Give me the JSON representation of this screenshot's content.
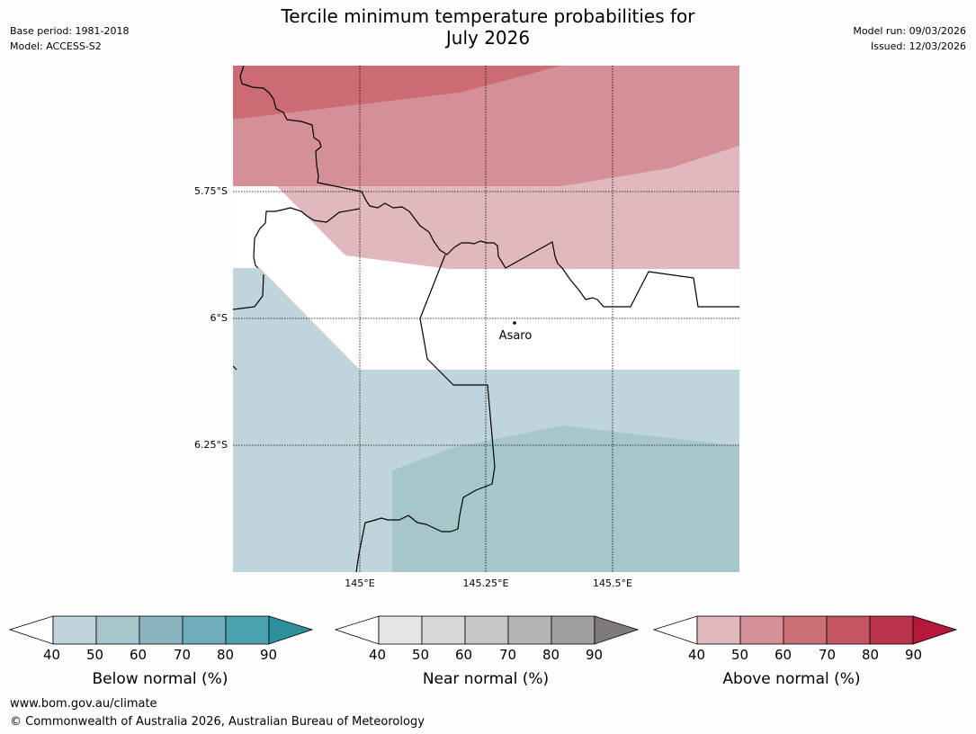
{
  "header": {
    "title_line1": "Tercile minimum temperature probabilities for",
    "title_line2": "July 2026",
    "base_period": "Base period: 1981-2018",
    "model": "Model: ACCESS-S2",
    "model_run": "Model run: 09/03/2026",
    "issued": "Issued: 12/03/2026"
  },
  "map": {
    "place_label": "Asaro",
    "lat_labels": [
      "5.75°S",
      "6°S",
      "6.25°S"
    ],
    "lon_labels": [
      "145°E",
      "145.25°E",
      "145.5°E"
    ],
    "colors": {
      "above_50": "#e0b8bd",
      "above_60": "#d58f96",
      "above_70": "#cb6c74",
      "below_50": "#bfd5db",
      "below_60": "#a7c6cb"
    }
  },
  "colorbars": [
    {
      "label": "Below normal (%)",
      "ticks": [
        "40",
        "50",
        "60",
        "70",
        "80",
        "90"
      ],
      "colors": [
        "#bfd5db",
        "#a7c6cb",
        "#8ab5bf",
        "#6daeba",
        "#4aa2ae",
        "#2e8f9c"
      ]
    },
    {
      "label": "Near normal (%)",
      "ticks": [
        "40",
        "50",
        "60",
        "70",
        "80",
        "90"
      ],
      "colors": [
        "#e5e5e5",
        "#d7d7d7",
        "#c7c7c7",
        "#b4b4b4",
        "#9f9f9f",
        "#7f7b7b"
      ]
    },
    {
      "label": "Above normal (%)",
      "ticks": [
        "40",
        "50",
        "60",
        "70",
        "80",
        "90"
      ],
      "colors": [
        "#e0b8bd",
        "#d58f96",
        "#cb7077",
        "#c35662",
        "#b9334a",
        "#b5193a"
      ]
    }
  ],
  "footer": {
    "url": "www.bom.gov.au/climate",
    "copyright": "© Commonwealth of Australia 2026, Australian Bureau of Meteorology"
  }
}
